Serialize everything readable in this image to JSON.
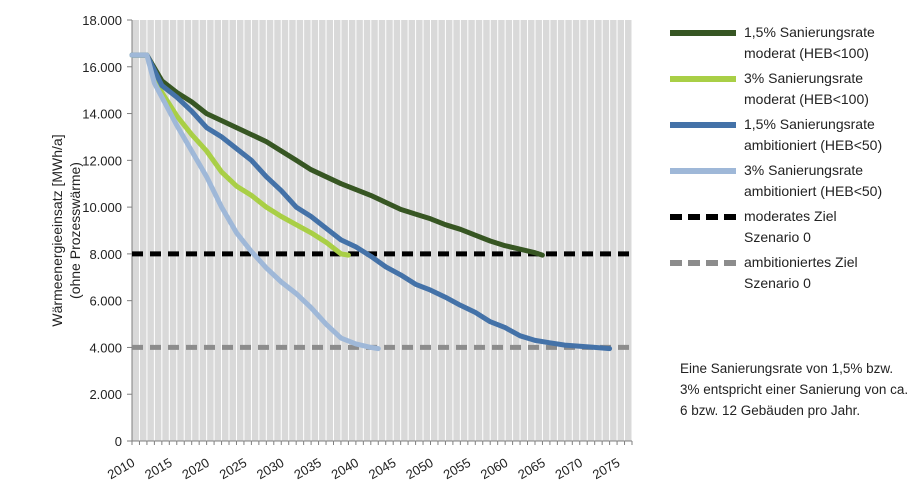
{
  "chart_data": {
    "type": "line",
    "title": "",
    "xlabel": "",
    "ylabel_line1": "Wärmeenergieeinsatz [MWh/a]",
    "ylabel_line2": "(ohne Prozesswärme)",
    "xlim": [
      2010,
      2077
    ],
    "ylim": [
      0,
      18000
    ],
    "x_ticks": [
      2010,
      2015,
      2020,
      2025,
      2030,
      2035,
      2040,
      2045,
      2050,
      2055,
      2060,
      2065,
      2070,
      2075
    ],
    "y_ticks": [
      0,
      2000,
      4000,
      6000,
      8000,
      10000,
      12000,
      14000,
      16000,
      18000
    ],
    "y_tick_labels": [
      "0",
      "2.000",
      "4.000",
      "6.000",
      "8.000",
      "10.000",
      "12.000",
      "14.000",
      "16.000",
      "18.000"
    ],
    "grid": "vertical lines at each year tick",
    "plot_background": "#d9d9d9",
    "legend_position": "right",
    "series": [
      {
        "name": "1,5% Sanierungsrate moderat (HEB<100)",
        "color": "#375623",
        "style": "solid",
        "x": [
          2010,
          2012,
          2014,
          2016,
          2018,
          2020,
          2022,
          2024,
          2026,
          2028,
          2030,
          2032,
          2034,
          2036,
          2038,
          2040,
          2042,
          2044,
          2046,
          2048,
          2050,
          2052,
          2054,
          2056,
          2058,
          2060,
          2062,
          2064,
          2065
        ],
        "values": [
          16500,
          16500,
          15400,
          14900,
          14500,
          14000,
          13700,
          13400,
          13100,
          12800,
          12400,
          12000,
          11600,
          11300,
          11000,
          10750,
          10500,
          10200,
          9900,
          9700,
          9500,
          9250,
          9050,
          8800,
          8550,
          8350,
          8200,
          8050,
          7950
        ]
      },
      {
        "name": "3% Sanierungsrate moderat (HEB<100)",
        "color": "#a9cf46",
        "style": "solid",
        "x": [
          2010,
          2012,
          2014,
          2016,
          2018,
          2020,
          2022,
          2024,
          2026,
          2028,
          2030,
          2032,
          2034,
          2036,
          2038,
          2039
        ],
        "values": [
          16500,
          16500,
          14900,
          13900,
          13100,
          12400,
          11500,
          10900,
          10500,
          10000,
          9600,
          9250,
          8900,
          8500,
          8000,
          7950
        ]
      },
      {
        "name": "1,5% Sanierungsrate ambitioniert (HEB<50)",
        "color": "#4472a8",
        "style": "solid",
        "x": [
          2010,
          2012,
          2014,
          2016,
          2018,
          2020,
          2022,
          2024,
          2026,
          2028,
          2030,
          2032,
          2034,
          2036,
          2038,
          2040,
          2042,
          2044,
          2046,
          2048,
          2050,
          2052,
          2054,
          2056,
          2058,
          2060,
          2062,
          2064,
          2066,
          2068,
          2070,
          2072,
          2074
        ],
        "values": [
          16500,
          16500,
          15200,
          14700,
          14100,
          13400,
          13000,
          12500,
          12000,
          11300,
          10700,
          10000,
          9600,
          9100,
          8600,
          8300,
          7900,
          7450,
          7100,
          6700,
          6450,
          6150,
          5800,
          5500,
          5100,
          4850,
          4500,
          4300,
          4200,
          4100,
          4050,
          4000,
          3950
        ]
      },
      {
        "name": "3% Sanierungsrate ambitioniert (HEB<50)",
        "color": "#9fb8d8",
        "style": "solid",
        "x": [
          2010,
          2012,
          2013,
          2014,
          2016,
          2018,
          2020,
          2022,
          2024,
          2026,
          2028,
          2030,
          2032,
          2034,
          2036,
          2038,
          2040,
          2042,
          2043
        ],
        "values": [
          16500,
          16500,
          15300,
          14700,
          13500,
          12400,
          11300,
          10000,
          8900,
          8100,
          7400,
          6800,
          6300,
          5700,
          5000,
          4400,
          4150,
          4000,
          3950
        ]
      },
      {
        "name": "moderates Ziel Szenario 0",
        "color": "#000000",
        "style": "dashed",
        "x": [
          2010,
          2077
        ],
        "values": [
          8000,
          8000
        ]
      },
      {
        "name": "ambitioniertes Ziel Szenario 0",
        "color": "#8c8c8c",
        "style": "dashed",
        "x": [
          2010,
          2077
        ],
        "values": [
          4000,
          4000
        ]
      }
    ]
  },
  "legend": [
    {
      "line1": "1,5% Sanierungsrate",
      "line2": "moderat (HEB<100)",
      "color": "#375623",
      "style": "solid"
    },
    {
      "line1": "3% Sanierungsrate",
      "line2": "moderat (HEB<100)",
      "color": "#a9cf46",
      "style": "solid"
    },
    {
      "line1": "1,5% Sanierungsrate",
      "line2": "ambitioniert (HEB<50)",
      "color": "#4472a8",
      "style": "solid"
    },
    {
      "line1": "3% Sanierungsrate",
      "line2": "ambitioniert (HEB<50)",
      "color": "#9fb8d8",
      "style": "solid"
    },
    {
      "line1": "moderates Ziel",
      "line2": "Szenario 0",
      "color": "#000000",
      "style": "dashed"
    },
    {
      "line1": "ambitioniertes Ziel",
      "line2": "Szenario 0",
      "color": "#8c8c8c",
      "style": "dashed"
    }
  ],
  "note": "Eine Sanierungsrate von 1,5% bzw. 3% entspricht einer Sanierung von ca. 6 bzw. 12 Gebäuden pro Jahr."
}
